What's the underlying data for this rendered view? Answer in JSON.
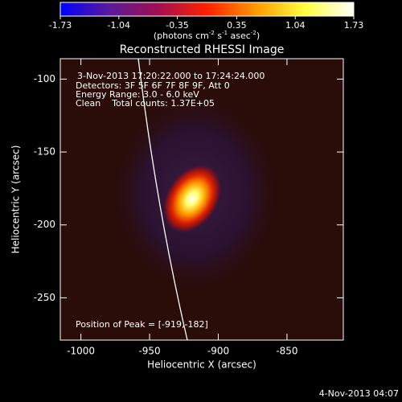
{
  "chart_data": {
    "type": "image",
    "title": "Reconstructed RHESSI Image",
    "xlabel": "Heliocentric X (arcsec)",
    "ylabel": "Heliocentric Y (arcsec)",
    "xlim": [
      -1015,
      -809
    ],
    "xticks": [
      -1000,
      -950,
      -900,
      -850
    ],
    "ylim": [
      -86,
      -279
    ],
    "yticks": [
      -100,
      -150,
      -200,
      -250
    ],
    "colorbar": {
      "lim": [
        -1.73,
        1.73
      ],
      "ticks": [
        -1.73,
        -1.04,
        -0.35,
        0.35,
        1.04,
        1.73
      ],
      "unit": [
        "(photons cm",
        "-2",
        " s",
        "-1",
        " asec",
        "-2",
        ")"
      ],
      "colors": [
        "#0000ff",
        "#5a1a9a",
        "#a01050",
        "#ff2000",
        "#ff9a00",
        "#ffff40",
        "#ffffff"
      ]
    },
    "annotations": [
      "3-Nov-2013 17:20:22.000 to 17:24:24.000",
      "Detectors: 3F 5F 6F 7F 8F 9F, Att 0",
      "Energy Range: 3.0 - 6.0 keV",
      "Clean    Total counts: 1.37E+05"
    ],
    "peak_label": "Position of Peak = [-919,-182]",
    "peak": [
      -919,
      -182
    ],
    "footer": "4-Nov-2013 04:07"
  }
}
